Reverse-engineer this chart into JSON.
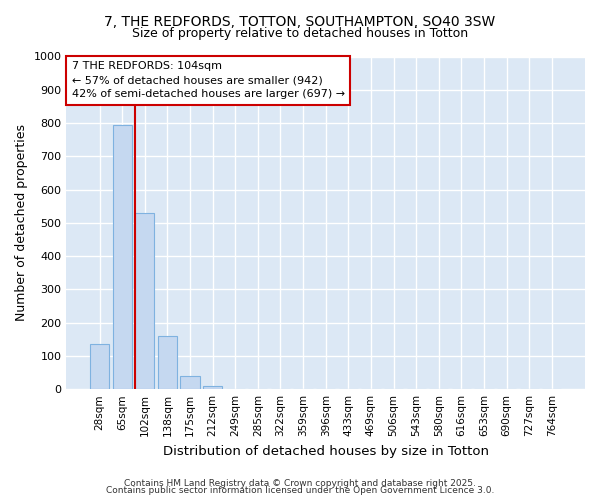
{
  "title1": "7, THE REDFORDS, TOTTON, SOUTHAMPTON, SO40 3SW",
  "title2": "Size of property relative to detached houses in Totton",
  "xlabel": "Distribution of detached houses by size in Totton",
  "ylabel": "Number of detached properties",
  "categories": [
    "28sqm",
    "65sqm",
    "102sqm",
    "138sqm",
    "175sqm",
    "212sqm",
    "249sqm",
    "285sqm",
    "322sqm",
    "359sqm",
    "396sqm",
    "433sqm",
    "469sqm",
    "506sqm",
    "543sqm",
    "580sqm",
    "616sqm",
    "653sqm",
    "690sqm",
    "727sqm",
    "764sqm"
  ],
  "values": [
    135,
    795,
    530,
    160,
    40,
    10,
    0,
    0,
    0,
    0,
    0,
    0,
    0,
    0,
    0,
    0,
    0,
    0,
    0,
    0,
    0
  ],
  "bar_color": "#c5d8f0",
  "bar_edge_color": "#7fb2e0",
  "red_line_x": 2,
  "annotation_line1": "7 THE REDFORDS: 104sqm",
  "annotation_line2": "← 57% of detached houses are smaller (942)",
  "annotation_line3": "42% of semi-detached houses are larger (697) →",
  "annotation_box_facecolor": "#ffffff",
  "annotation_box_edgecolor": "#cc0000",
  "plot_bg_color": "#dce8f5",
  "fig_bg_color": "#ffffff",
  "grid_color": "#ffffff",
  "footnote1": "Contains HM Land Registry data © Crown copyright and database right 2025.",
  "footnote2": "Contains public sector information licensed under the Open Government Licence 3.0.",
  "ylim": [
    0,
    1000
  ],
  "yticks": [
    0,
    100,
    200,
    300,
    400,
    500,
    600,
    700,
    800,
    900,
    1000
  ]
}
